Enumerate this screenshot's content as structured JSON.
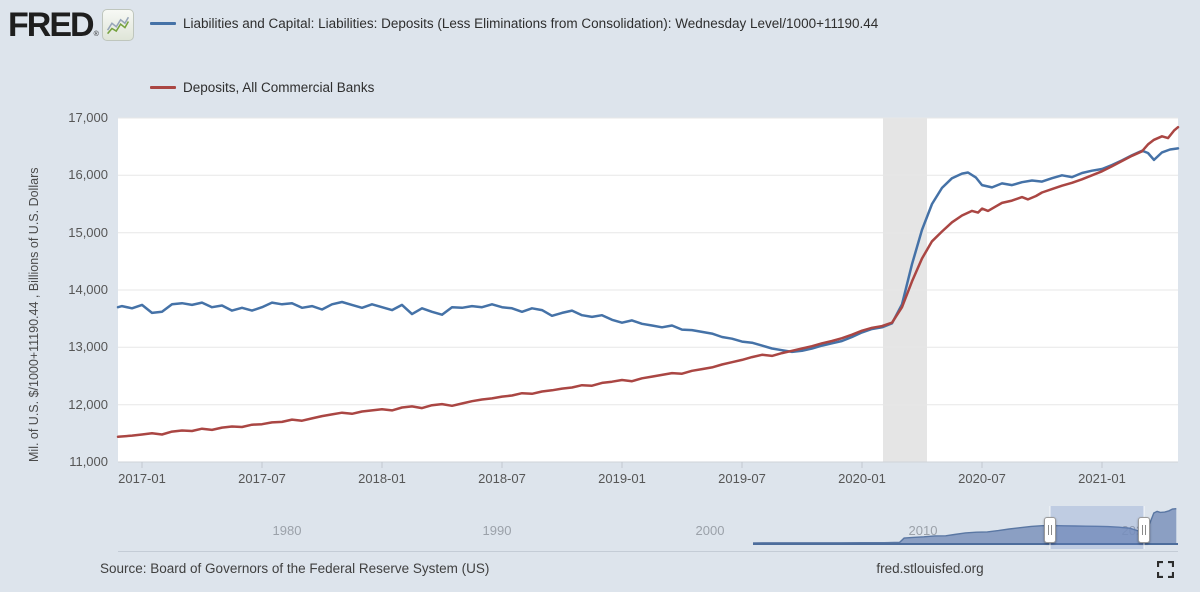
{
  "header": {
    "logo_text": "FRED",
    "logo_registered": "®"
  },
  "chart_data": {
    "type": "line",
    "title": "",
    "ylabel": "Mil. of U.S. $/1000+11190.44 , Billions of U.S. Dollars",
    "ylim": [
      11000,
      17000
    ],
    "grid": "horizontal",
    "legend_position": "top-left",
    "y_ticks": [
      17000,
      16000,
      15000,
      14000,
      13000,
      12000,
      11000
    ],
    "x_ticks": [
      {
        "m": 1,
        "label": "2017-01"
      },
      {
        "m": 7,
        "label": "2017-07"
      },
      {
        "m": 13,
        "label": "2018-01"
      },
      {
        "m": 19,
        "label": "2018-07"
      },
      {
        "m": 25,
        "label": "2019-01"
      },
      {
        "m": 31,
        "label": "2019-07"
      },
      {
        "m": 37,
        "label": "2020-01"
      },
      {
        "m": 43,
        "label": "2020-07"
      },
      {
        "m": 49,
        "label": "2021-01"
      }
    ],
    "x_unit": "months since 2016-12",
    "recession_band": {
      "from_month": 38.05,
      "to_month": 40.25,
      "color": "#e5e5e5"
    },
    "series": [
      {
        "name": "Liabilities and Capital: Liabilities: Deposits (Less Eliminations from Consolidation): Wednesday Level/1000+11190.44",
        "color": "#4572a7",
        "points": [
          [
            -0.2,
            13700
          ],
          [
            0,
            13720
          ],
          [
            0.5,
            13680
          ],
          [
            1,
            13740
          ],
          [
            1.5,
            13600
          ],
          [
            2,
            13620
          ],
          [
            2.5,
            13750
          ],
          [
            3,
            13770
          ],
          [
            3.5,
            13740
          ],
          [
            4,
            13780
          ],
          [
            4.5,
            13700
          ],
          [
            5,
            13730
          ],
          [
            5.5,
            13640
          ],
          [
            6,
            13690
          ],
          [
            6.5,
            13640
          ],
          [
            7,
            13700
          ],
          [
            7.5,
            13780
          ],
          [
            8,
            13750
          ],
          [
            8.5,
            13770
          ],
          [
            9,
            13690
          ],
          [
            9.5,
            13720
          ],
          [
            10,
            13660
          ],
          [
            10.5,
            13750
          ],
          [
            11,
            13790
          ],
          [
            11.5,
            13740
          ],
          [
            12,
            13690
          ],
          [
            12.5,
            13750
          ],
          [
            13,
            13700
          ],
          [
            13.5,
            13650
          ],
          [
            14,
            13740
          ],
          [
            14.5,
            13580
          ],
          [
            15,
            13680
          ],
          [
            15.5,
            13620
          ],
          [
            16,
            13570
          ],
          [
            16.5,
            13700
          ],
          [
            17,
            13690
          ],
          [
            17.5,
            13720
          ],
          [
            18,
            13700
          ],
          [
            18.5,
            13750
          ],
          [
            19,
            13700
          ],
          [
            19.5,
            13680
          ],
          [
            20,
            13620
          ],
          [
            20.5,
            13680
          ],
          [
            21,
            13650
          ],
          [
            21.5,
            13550
          ],
          [
            22,
            13600
          ],
          [
            22.5,
            13640
          ],
          [
            23,
            13560
          ],
          [
            23.5,
            13530
          ],
          [
            24,
            13560
          ],
          [
            24.5,
            13480
          ],
          [
            25,
            13430
          ],
          [
            25.5,
            13470
          ],
          [
            26,
            13410
          ],
          [
            26.5,
            13380
          ],
          [
            27,
            13350
          ],
          [
            27.5,
            13380
          ],
          [
            28,
            13310
          ],
          [
            28.5,
            13300
          ],
          [
            29,
            13270
          ],
          [
            29.5,
            13240
          ],
          [
            30,
            13180
          ],
          [
            30.5,
            13150
          ],
          [
            31,
            13100
          ],
          [
            31.5,
            13080
          ],
          [
            32,
            13030
          ],
          [
            32.5,
            12980
          ],
          [
            33,
            12950
          ],
          [
            33.5,
            12920
          ],
          [
            34,
            12940
          ],
          [
            34.5,
            12980
          ],
          [
            35,
            13030
          ],
          [
            35.5,
            13070
          ],
          [
            36,
            13110
          ],
          [
            36.5,
            13180
          ],
          [
            37,
            13260
          ],
          [
            37.5,
            13320
          ],
          [
            38,
            13350
          ],
          [
            38.5,
            13420
          ],
          [
            39,
            13750
          ],
          [
            39.5,
            14450
          ],
          [
            40,
            15050
          ],
          [
            40.5,
            15500
          ],
          [
            41,
            15780
          ],
          [
            41.5,
            15950
          ],
          [
            42,
            16030
          ],
          [
            42.3,
            16050
          ],
          [
            42.7,
            15960
          ],
          [
            43,
            15830
          ],
          [
            43.5,
            15790
          ],
          [
            44,
            15860
          ],
          [
            44.5,
            15830
          ],
          [
            45,
            15880
          ],
          [
            45.5,
            15910
          ],
          [
            46,
            15890
          ],
          [
            46.5,
            15950
          ],
          [
            47,
            16000
          ],
          [
            47.5,
            15970
          ],
          [
            48,
            16040
          ],
          [
            48.5,
            16080
          ],
          [
            49,
            16110
          ],
          [
            49.5,
            16180
          ],
          [
            50,
            16260
          ],
          [
            50.5,
            16350
          ],
          [
            51,
            16430
          ],
          [
            51.3,
            16390
          ],
          [
            51.6,
            16270
          ],
          [
            52,
            16400
          ],
          [
            52.4,
            16450
          ],
          [
            52.8,
            16470
          ]
        ]
      },
      {
        "name": "Deposits, All Commercial Banks",
        "color": "#aa4643",
        "points": [
          [
            -0.2,
            11440
          ],
          [
            0.5,
            11460
          ],
          [
            1,
            11480
          ],
          [
            1.5,
            11500
          ],
          [
            2,
            11480
          ],
          [
            2.5,
            11530
          ],
          [
            3,
            11550
          ],
          [
            3.5,
            11540
          ],
          [
            4,
            11580
          ],
          [
            4.5,
            11560
          ],
          [
            5,
            11600
          ],
          [
            5.5,
            11620
          ],
          [
            6,
            11610
          ],
          [
            6.5,
            11650
          ],
          [
            7,
            11660
          ],
          [
            7.5,
            11690
          ],
          [
            8,
            11700
          ],
          [
            8.5,
            11740
          ],
          [
            9,
            11720
          ],
          [
            9.5,
            11760
          ],
          [
            10,
            11800
          ],
          [
            10.5,
            11830
          ],
          [
            11,
            11860
          ],
          [
            11.5,
            11840
          ],
          [
            12,
            11880
          ],
          [
            12.5,
            11900
          ],
          [
            13,
            11920
          ],
          [
            13.5,
            11900
          ],
          [
            14,
            11950
          ],
          [
            14.5,
            11970
          ],
          [
            15,
            11940
          ],
          [
            15.5,
            11990
          ],
          [
            16,
            12010
          ],
          [
            16.5,
            11980
          ],
          [
            17,
            12020
          ],
          [
            17.5,
            12060
          ],
          [
            18,
            12090
          ],
          [
            18.5,
            12110
          ],
          [
            19,
            12140
          ],
          [
            19.5,
            12160
          ],
          [
            20,
            12200
          ],
          [
            20.5,
            12190
          ],
          [
            21,
            12230
          ],
          [
            21.5,
            12250
          ],
          [
            22,
            12280
          ],
          [
            22.5,
            12300
          ],
          [
            23,
            12340
          ],
          [
            23.5,
            12330
          ],
          [
            24,
            12380
          ],
          [
            24.5,
            12400
          ],
          [
            25,
            12430
          ],
          [
            25.5,
            12410
          ],
          [
            26,
            12460
          ],
          [
            26.5,
            12490
          ],
          [
            27,
            12520
          ],
          [
            27.5,
            12550
          ],
          [
            28,
            12540
          ],
          [
            28.5,
            12590
          ],
          [
            29,
            12620
          ],
          [
            29.5,
            12650
          ],
          [
            30,
            12700
          ],
          [
            30.5,
            12740
          ],
          [
            31,
            12780
          ],
          [
            31.5,
            12830
          ],
          [
            32,
            12870
          ],
          [
            32.5,
            12850
          ],
          [
            33,
            12900
          ],
          [
            33.5,
            12940
          ],
          [
            34,
            12980
          ],
          [
            34.5,
            13020
          ],
          [
            35,
            13070
          ],
          [
            35.5,
            13110
          ],
          [
            36,
            13160
          ],
          [
            36.5,
            13220
          ],
          [
            37,
            13290
          ],
          [
            37.5,
            13340
          ],
          [
            38,
            13370
          ],
          [
            38.5,
            13430
          ],
          [
            39,
            13700
          ],
          [
            39.5,
            14150
          ],
          [
            40,
            14550
          ],
          [
            40.5,
            14850
          ],
          [
            41,
            15020
          ],
          [
            41.5,
            15180
          ],
          [
            42,
            15300
          ],
          [
            42.5,
            15380
          ],
          [
            42.8,
            15350
          ],
          [
            43,
            15420
          ],
          [
            43.3,
            15380
          ],
          [
            43.7,
            15460
          ],
          [
            44,
            15520
          ],
          [
            44.5,
            15560
          ],
          [
            45,
            15620
          ],
          [
            45.3,
            15580
          ],
          [
            45.7,
            15640
          ],
          [
            46,
            15700
          ],
          [
            46.5,
            15760
          ],
          [
            47,
            15820
          ],
          [
            47.5,
            15870
          ],
          [
            48,
            15930
          ],
          [
            48.5,
            16000
          ],
          [
            49,
            16070
          ],
          [
            49.5,
            16160
          ],
          [
            50,
            16250
          ],
          [
            50.5,
            16340
          ],
          [
            51,
            16420
          ],
          [
            51.3,
            16540
          ],
          [
            51.6,
            16620
          ],
          [
            52,
            16680
          ],
          [
            52.3,
            16650
          ],
          [
            52.6,
            16780
          ],
          [
            52.8,
            16840
          ]
        ]
      }
    ]
  },
  "navigator": {
    "decade_labels": [
      "1980",
      "1990",
      "2000",
      "2010",
      "2020"
    ],
    "series": {
      "points": [
        [
          2002.0,
          11210
        ],
        [
          2003,
          11215
        ],
        [
          2004,
          11215
        ],
        [
          2005,
          11220
        ],
        [
          2006,
          11225
        ],
        [
          2007,
          11230
        ],
        [
          2008,
          11240
        ],
        [
          2008.7,
          11300
        ],
        [
          2008.9,
          11950
        ],
        [
          2009.3,
          12050
        ],
        [
          2009.8,
          12150
        ],
        [
          2010.3,
          12280
        ],
        [
          2010.8,
          12300
        ],
        [
          2011.2,
          12500
        ],
        [
          2011.7,
          12750
        ],
        [
          2012.2,
          12850
        ],
        [
          2012.7,
          12900
        ],
        [
          2013.2,
          13100
        ],
        [
          2013.7,
          13350
        ],
        [
          2014.2,
          13550
        ],
        [
          2014.7,
          13750
        ],
        [
          2015.2,
          13850
        ],
        [
          2015.7,
          13870
        ],
        [
          2016.2,
          13840
        ],
        [
          2016.7,
          13800
        ],
        [
          2017.2,
          13780
        ],
        [
          2017.7,
          13760
        ],
        [
          2018.2,
          13720
        ],
        [
          2018.7,
          13620
        ],
        [
          2019.2,
          13470
        ],
        [
          2019.6,
          13050
        ],
        [
          2019.8,
          12960
        ],
        [
          2020.0,
          13300
        ],
        [
          2020.15,
          14500
        ],
        [
          2020.3,
          15800
        ],
        [
          2020.45,
          16050
        ],
        [
          2020.6,
          15900
        ],
        [
          2020.8,
          15950
        ],
        [
          2021.0,
          16150
        ],
        [
          2021.15,
          16420
        ],
        [
          2021.33,
          16470
        ]
      ]
    }
  },
  "footer": {
    "source": "Source: Board of Governors of the Federal Reserve System (US)",
    "site": "fred.stlouisfed.org"
  }
}
